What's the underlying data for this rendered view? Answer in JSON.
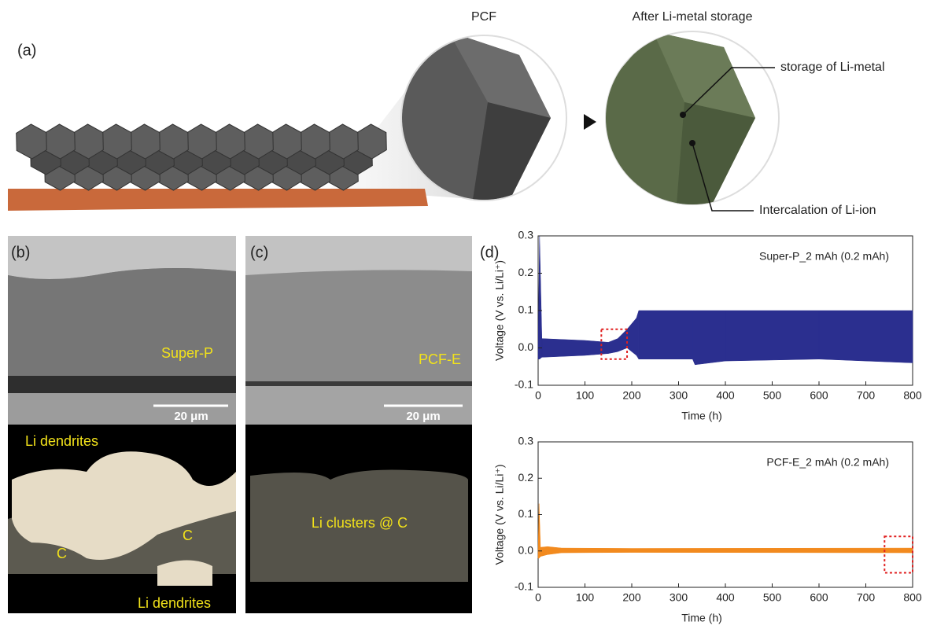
{
  "figure": {
    "panel_labels": [
      "(a)",
      "(b)",
      "(c)",
      "(d)"
    ],
    "schematic": {
      "pcf_label": "PCF",
      "after_label": "After Li-metal storage",
      "callouts": [
        "storage of Li-metal",
        "Intercalation of Li-ion"
      ]
    },
    "sem": {
      "b_top": {
        "label": "Super-P",
        "scale_bar": "20 μm"
      },
      "c_top": {
        "label": "PCF-E",
        "scale_bar": "20 μm"
      },
      "b_bottom": {
        "labels": [
          "Li dendrites",
          "C",
          "C",
          "Li dendrites"
        ]
      },
      "c_bottom": {
        "label": "Li clusters @ C"
      }
    }
  },
  "chart_data": [
    {
      "type": "band",
      "annotation": "Super-P_2 mAh (0.2 mAh)",
      "xlabel": "Time (h)",
      "ylabel": "Voltage (V vs. Li/Li⁺)",
      "color": "#2b2f8f",
      "x": [
        0,
        3,
        8,
        100,
        150,
        170,
        190,
        210,
        215,
        330,
        335,
        400,
        600,
        800
      ],
      "upper": [
        0,
        0.3,
        0.025,
        0.02,
        0.015,
        0.025,
        0.05,
        0.08,
        0.1,
        0.1,
        0.1,
        0.1,
        0.1,
        0.1
      ],
      "lower": [
        -0.03,
        -0.03,
        -0.025,
        -0.02,
        -0.015,
        -0.01,
        0.0,
        -0.02,
        -0.03,
        -0.03,
        -0.045,
        -0.035,
        -0.03,
        -0.04
      ],
      "xlim": [
        0,
        800
      ],
      "xticks": [
        0,
        100,
        200,
        300,
        400,
        500,
        600,
        700,
        800
      ],
      "ylim": [
        -0.1,
        0.3
      ],
      "yticks": [
        -0.1,
        {
          "value": 0,
          "label": "0.0"
        },
        0.1,
        0.2,
        0.3
      ],
      "highlight": {
        "x": [
          135,
          190
        ],
        "y": [
          -0.03,
          0.05
        ],
        "color": "#e02020"
      }
    },
    {
      "type": "band",
      "annotation": "PCF-E_2 mAh (0.2 mAh)",
      "xlabel": "Time (h)",
      "ylabel": "Voltage (V vs. Li/Li⁺)",
      "color": "#f28a1e",
      "x": [
        0,
        2,
        5,
        20,
        50,
        200,
        800
      ],
      "upper": [
        0,
        0.13,
        0.01,
        0.012,
        0.008,
        0.007,
        0.008
      ],
      "lower": [
        -0.02,
        -0.02,
        -0.015,
        -0.01,
        -0.005,
        -0.004,
        -0.005
      ],
      "xlim": [
        0,
        800
      ],
      "xticks": [
        0,
        100,
        200,
        300,
        400,
        500,
        600,
        700,
        800
      ],
      "ylim": [
        -0.1,
        0.3
      ],
      "yticks": [
        -0.1,
        {
          "value": 0,
          "label": "0.0"
        },
        0.1,
        0.2,
        0.3
      ],
      "highlight": {
        "x": [
          740,
          800
        ],
        "y": [
          -0.06,
          0.04
        ],
        "color": "#e02020"
      }
    }
  ]
}
